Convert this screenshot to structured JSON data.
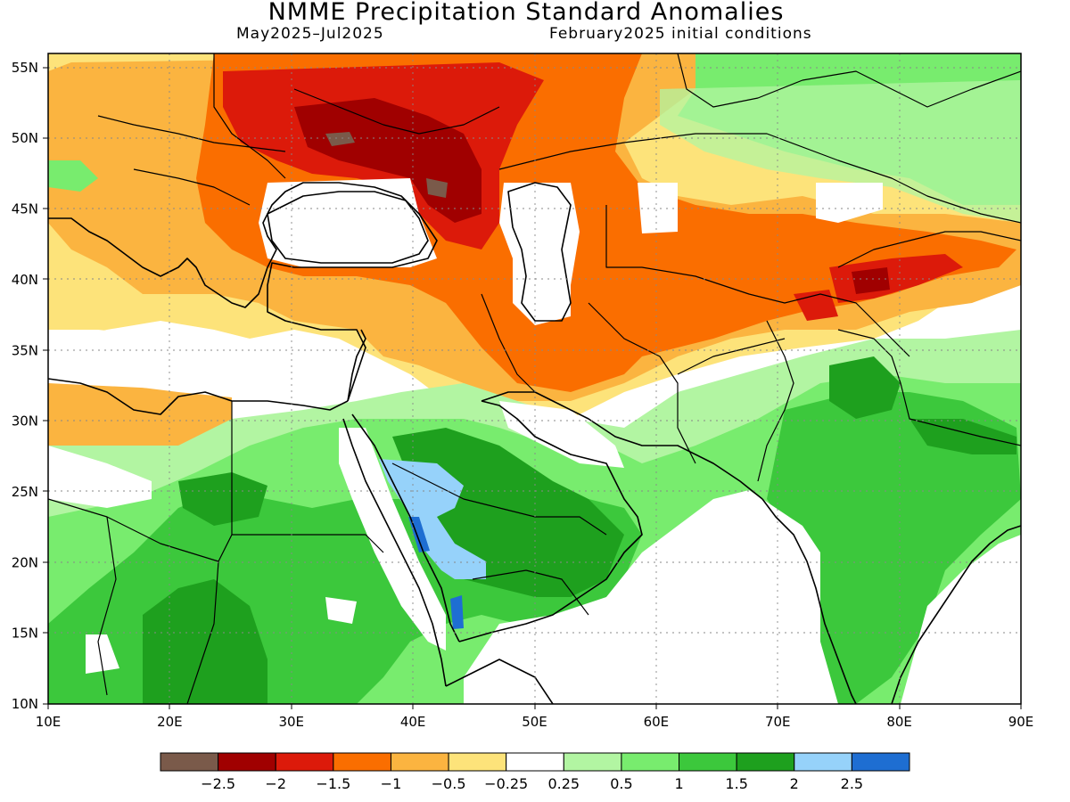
{
  "title": "NMME Precipitation Standard Anomalies",
  "subtitle_period": "May2025–Jul2025",
  "subtitle_init": "February2025 initial conditions",
  "map": {
    "lon_range": [
      10,
      90
    ],
    "lat_range": [
      10,
      56
    ],
    "x_tick_labels": [
      "10E",
      "20E",
      "30E",
      "40E",
      "50E",
      "60E",
      "70E",
      "80E",
      "90E"
    ],
    "y_tick_labels": [
      "10N",
      "15N",
      "20N",
      "25N",
      "30N",
      "35N",
      "40N",
      "45N",
      "50N",
      "55N"
    ],
    "grid": "dotted",
    "background": "#ffffff"
  },
  "legend": {
    "bins": [
      {
        "color": "#7a5a4a"
      },
      {
        "color": "#a00000"
      },
      {
        "color": "#dc1a0a"
      },
      {
        "color": "#fa6e00"
      },
      {
        "color": "#fbb440"
      },
      {
        "color": "#fde37a"
      },
      {
        "color": "#ffffff"
      },
      {
        "color": "#b2f5a2"
      },
      {
        "color": "#78ec6e"
      },
      {
        "color": "#3cc83c"
      },
      {
        "color": "#1ea01e"
      },
      {
        "color": "#96d2fa"
      },
      {
        "color": "#1e6ed2"
      }
    ],
    "labels": [
      "−2.5",
      "−2",
      "−1.5",
      "−1",
      "−0.5",
      "−0.25",
      "0.25",
      "0.5",
      "1",
      "1.5",
      "2",
      "2.5"
    ]
  }
}
